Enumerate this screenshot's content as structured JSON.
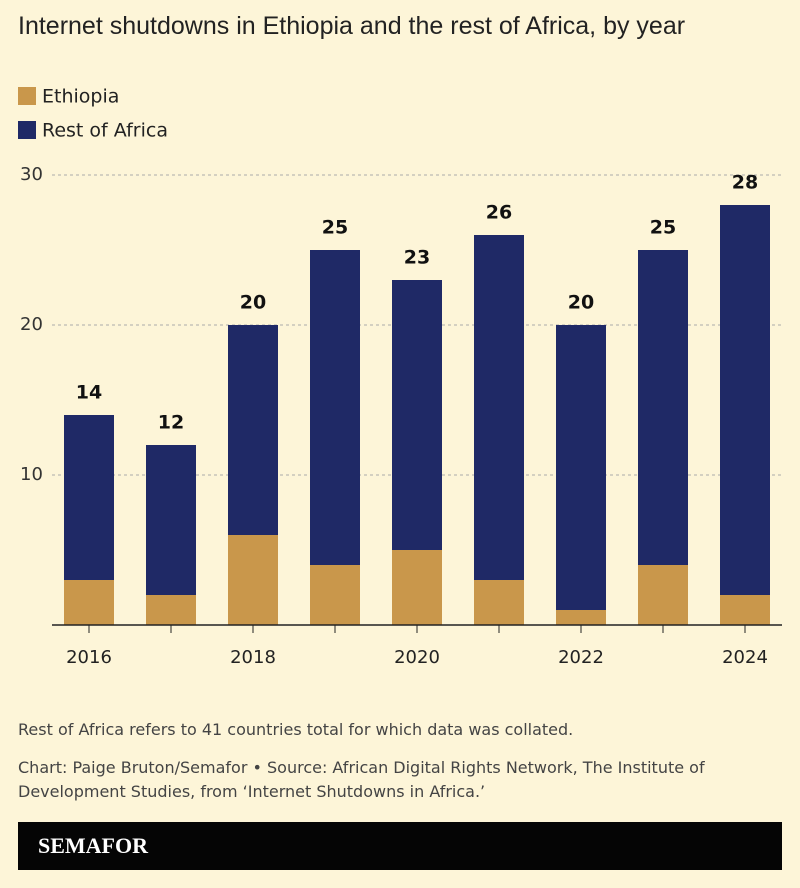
{
  "chart_data": {
    "type": "stacked_bar",
    "title": "Internet shutdowns in Ethiopia and the rest of Africa, by year",
    "categories": [
      "2016",
      null,
      "2018",
      null,
      "2020",
      null,
      "2022",
      null,
      "2024"
    ],
    "series": [
      {
        "name": "Ethiopia",
        "color": "#c9974b",
        "values": [
          3,
          2,
          6,
          4,
          5,
          3,
          1,
          4,
          2
        ]
      },
      {
        "name": "Rest of Africa",
        "color": "#1f2966",
        "values": [
          11,
          10,
          14,
          21,
          18,
          23,
          19,
          21,
          26
        ]
      }
    ],
    "totals": [
      14,
      12,
      20,
      25,
      23,
      26,
      20,
      25,
      28
    ],
    "ylim": [
      0,
      30
    ],
    "yticks": [
      10,
      20,
      30
    ],
    "grid": true,
    "note": "Rest of Africa refers to 41 countries total for which data was collated.",
    "source": "Chart: Paige Bruton/Semafor • Source: African Digital Rights Network, The Institute of Development Studies, from ‘Internet Shutdowns in Africa.’"
  },
  "brand": "SEMAFOR"
}
